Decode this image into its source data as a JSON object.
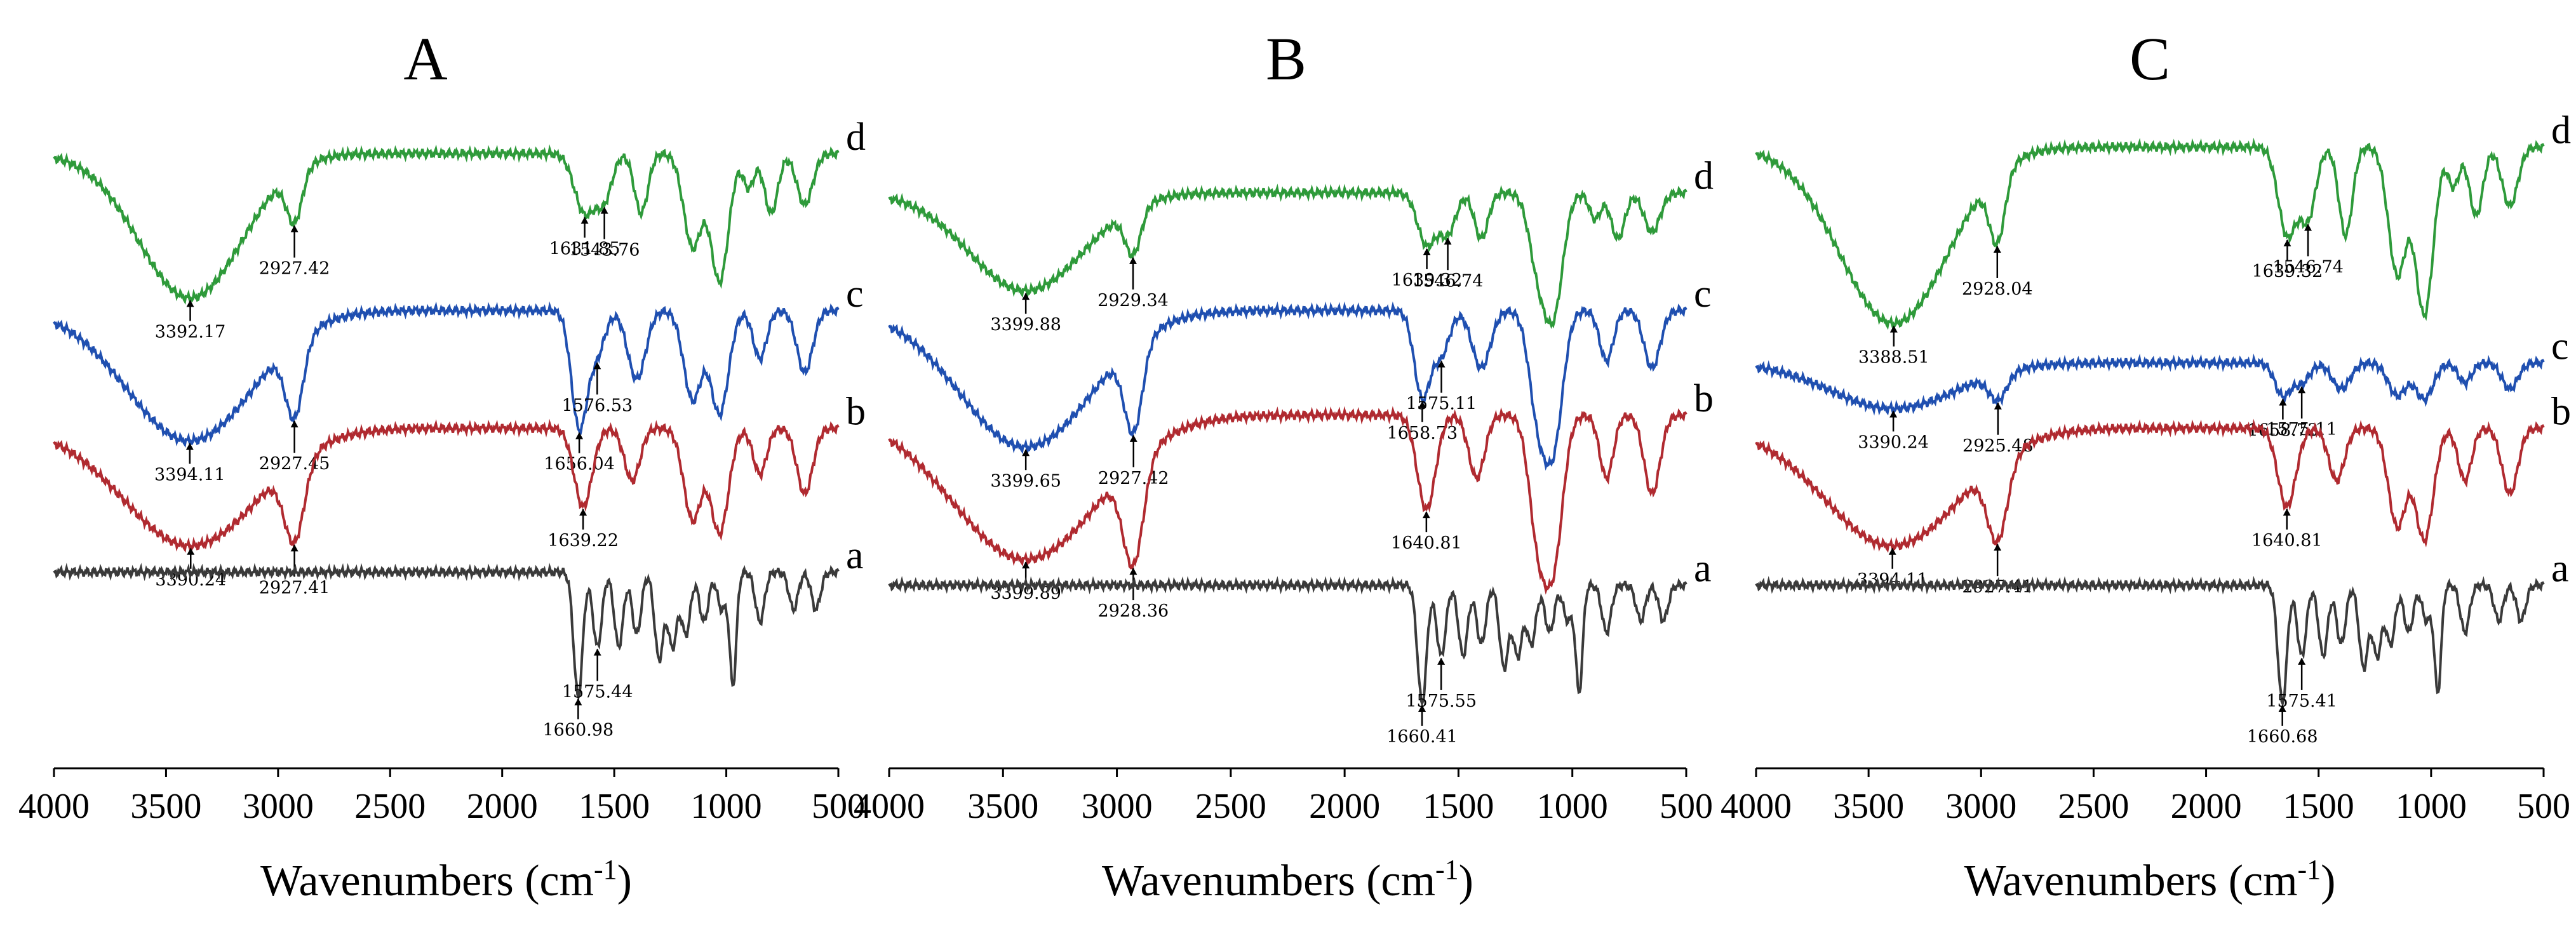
{
  "chart_data": [
    {
      "type": "line",
      "title": "A",
      "xlabel": "Wavenumbers (cm-1)",
      "xlabel_main": "Wavenumbers (cm",
      "xlabel_sup": "-1",
      "xlabel_close": ")",
      "xlim": [
        4000,
        500
      ],
      "ylabel": "",
      "x_ticks": [
        4000,
        3500,
        3000,
        2500,
        2000,
        1500,
        1000,
        500
      ],
      "x_tick_labels": [
        "4000",
        "3500",
        "3000",
        "2500",
        "2000",
        "1500",
        "1000",
        "500"
      ],
      "series": [
        {
          "name": "d",
          "color": "#2e9a3a",
          "offset": 0.06,
          "amp": 0.26,
          "bands": [
            [
              3392,
              0.85,
              230
            ],
            [
              2927,
              0.3,
              35
            ],
            [
              1632,
              0.35,
              45
            ],
            [
              1544,
              0.25,
              35
            ],
            [
              1380,
              0.35,
              30
            ],
            [
              1150,
              0.55,
              40
            ],
            [
              1030,
              0.75,
              40
            ],
            [
              900,
              0.2,
              25
            ],
            [
              800,
              0.35,
              30
            ],
            [
              650,
              0.3,
              35
            ]
          ],
          "annotations": [
            {
              "label": "3392.17",
              "x": 3392
            },
            {
              "label": "2927.42",
              "x": 2927
            },
            {
              "label": "1631.85",
              "x": 1632
            },
            {
              "label": "1543.76",
              "x": 1544
            }
          ]
        },
        {
          "name": "c",
          "color": "#1f4fb0",
          "offset": 0.3,
          "amp": 0.21,
          "bands": [
            [
              3394,
              0.95,
              280
            ],
            [
              2927,
              0.55,
              40
            ],
            [
              1656,
              0.85,
              35
            ],
            [
              1576,
              0.3,
              35
            ],
            [
              1400,
              0.5,
              40
            ],
            [
              1150,
              0.65,
              40
            ],
            [
              1030,
              0.75,
              40
            ],
            [
              850,
              0.35,
              30
            ],
            [
              650,
              0.45,
              35
            ]
          ],
          "annotations": [
            {
              "label": "3394.11",
              "x": 3394
            },
            {
              "label": "2927.45",
              "x": 2927
            },
            {
              "label": "1656.04",
              "x": 1656
            },
            {
              "label": "1576.53",
              "x": 1576
            }
          ]
        },
        {
          "name": "b",
          "color": "#b02a30",
          "offset": 0.48,
          "amp": 0.2,
          "bands": [
            [
              3390,
              0.9,
              300
            ],
            [
              2927,
              0.6,
              45
            ],
            [
              1639,
              0.6,
              40
            ],
            [
              1420,
              0.4,
              35
            ],
            [
              1150,
              0.7,
              40
            ],
            [
              1030,
              0.8,
              40
            ],
            [
              850,
              0.35,
              30
            ],
            [
              650,
              0.5,
              35
            ]
          ],
          "annotations": [
            {
              "label": "3390.24",
              "x": 3390
            },
            {
              "label": "2927.41",
              "x": 2927
            },
            {
              "label": "1639.22",
              "x": 1639
            }
          ]
        },
        {
          "name": "a",
          "color": "#3a3a3a",
          "offset": 0.7,
          "amp": 0.19,
          "bands": [
            [
              1661,
              1.0,
              20
            ],
            [
              1575,
              0.6,
              20
            ],
            [
              1480,
              0.6,
              20
            ],
            [
              1400,
              0.5,
              20
            ],
            [
              1300,
              0.7,
              20
            ],
            [
              1240,
              0.6,
              20
            ],
            [
              1180,
              0.5,
              20
            ],
            [
              1100,
              0.4,
              20
            ],
            [
              1020,
              0.3,
              20
            ],
            [
              970,
              0.9,
              15
            ],
            [
              850,
              0.4,
              20
            ],
            [
              700,
              0.3,
              20
            ],
            [
              600,
              0.3,
              20
            ]
          ],
          "annotations": [
            {
              "label": "1660.98",
              "x": 1661
            },
            {
              "label": "1575.44",
              "x": 1575
            }
          ]
        }
      ]
    },
    {
      "type": "line",
      "title": "B",
      "xlabel": "Wavenumbers (cm-1)",
      "xlabel_main": "Wavenumbers (cm",
      "xlabel_sup": "-1",
      "xlabel_close": ")",
      "xlim": [
        4000,
        500
      ],
      "ylabel": "",
      "x_ticks": [
        4000,
        3500,
        3000,
        2500,
        2000,
        1500,
        1000,
        500
      ],
      "x_tick_labels": [
        "4000",
        "3500",
        "3000",
        "2500",
        "2000",
        "1500",
        "1000",
        "500"
      ],
      "series": [
        {
          "name": "d",
          "color": "#2e9a3a",
          "offset": 0.12,
          "amp": 0.2,
          "bands": [
            [
              3400,
              0.75,
              250
            ],
            [
              2929,
              0.35,
              35
            ],
            [
              1639,
              0.4,
              40
            ],
            [
              1547,
              0.3,
              35
            ],
            [
              1400,
              0.35,
              30
            ],
            [
              1150,
              0.55,
              40
            ],
            [
              1080,
              0.85,
              40
            ],
            [
              900,
              0.2,
              25
            ],
            [
              800,
              0.35,
              30
            ],
            [
              650,
              0.3,
              35
            ]
          ],
          "annotations": [
            {
              "label": "3399.88",
              "x": 3400
            },
            {
              "label": "2929.34",
              "x": 2929
            },
            {
              "label": "1639.32",
              "x": 1639
            },
            {
              "label": "1546.74",
              "x": 1547
            }
          ]
        },
        {
          "name": "c",
          "color": "#1f4fb0",
          "offset": 0.3,
          "amp": 0.22,
          "bands": [
            [
              3400,
              0.95,
              290
            ],
            [
              2927,
              0.6,
              40
            ],
            [
              1659,
              0.6,
              35
            ],
            [
              1575,
              0.3,
              35
            ],
            [
              1400,
              0.4,
              40
            ],
            [
              1150,
              0.7,
              40
            ],
            [
              1080,
              0.85,
              40
            ],
            [
              850,
              0.35,
              30
            ],
            [
              650,
              0.4,
              35
            ]
          ],
          "annotations": [
            {
              "label": "3399.65",
              "x": 3400
            },
            {
              "label": "2927.42",
              "x": 2927
            },
            {
              "label": "1658.73",
              "x": 1659
            },
            {
              "label": "1575.11",
              "x": 1575
            }
          ]
        },
        {
          "name": "b",
          "color": "#b02a30",
          "offset": 0.46,
          "amp": 0.24,
          "bands": [
            [
              3400,
              0.92,
              320
            ],
            [
              2928,
              0.65,
              45
            ],
            [
              1641,
              0.6,
              40
            ],
            [
              1420,
              0.4,
              35
            ],
            [
              1150,
              0.75,
              40
            ],
            [
              1080,
              0.85,
              40
            ],
            [
              850,
              0.4,
              30
            ],
            [
              650,
              0.5,
              35
            ]
          ],
          "annotations": [
            {
              "label": "3399.89",
              "x": 3400
            },
            {
              "label": "2928.36",
              "x": 2928
            },
            {
              "label": "1640.81",
              "x": 1641
            }
          ]
        },
        {
          "name": "a",
          "color": "#3a3a3a",
          "offset": 0.72,
          "amp": 0.18,
          "bands": [
            [
              1660,
              1.0,
              20
            ],
            [
              1576,
              0.6,
              20
            ],
            [
              1480,
              0.6,
              20
            ],
            [
              1400,
              0.5,
              20
            ],
            [
              1300,
              0.7,
              20
            ],
            [
              1240,
              0.6,
              20
            ],
            [
              1180,
              0.5,
              20
            ],
            [
              1100,
              0.4,
              20
            ],
            [
              1020,
              0.3,
              20
            ],
            [
              970,
              0.9,
              15
            ],
            [
              850,
              0.4,
              20
            ],
            [
              700,
              0.3,
              20
            ],
            [
              600,
              0.3,
              20
            ]
          ],
          "annotations": [
            {
              "label": "1660.41",
              "x": 1660
            },
            {
              "label": "1575.55",
              "x": 1576
            }
          ]
        }
      ]
    },
    {
      "type": "line",
      "title": "C",
      "xlabel": "Wavenumbers (cm-1)",
      "xlabel_main": "Wavenumbers (cm",
      "xlabel_sup": "-1",
      "xlabel_close": ")",
      "xlim": [
        4000,
        500
      ],
      "ylabel": "",
      "x_ticks": [
        4000,
        3500,
        3000,
        2500,
        2000,
        1500,
        1000,
        500
      ],
      "x_tick_labels": [
        "4000",
        "3500",
        "3000",
        "2500",
        "2000",
        "1500",
        "1000",
        "500"
      ],
      "series": [
        {
          "name": "d",
          "color": "#2e9a3a",
          "offset": 0.05,
          "amp": 0.3,
          "bands": [
            [
              3388,
              0.9,
              240
            ],
            [
              2928,
              0.35,
              35
            ],
            [
              1639,
              0.45,
              40
            ],
            [
              1547,
              0.35,
              35
            ],
            [
              1380,
              0.45,
              30
            ],
            [
              1150,
              0.65,
              40
            ],
            [
              1030,
              0.85,
              40
            ],
            [
              900,
              0.2,
              25
            ],
            [
              800,
              0.35,
              30
            ],
            [
              650,
              0.3,
              35
            ]
          ],
          "annotations": [
            {
              "label": "3388.51",
              "x": 3388
            },
            {
              "label": "2928.04",
              "x": 2928
            },
            {
              "label": "1639.32",
              "x": 1639
            },
            {
              "label": "1546.74",
              "x": 1547
            }
          ]
        },
        {
          "name": "c",
          "color": "#1f4fb0",
          "offset": 0.38,
          "amp": 0.1,
          "bands": [
            [
              3390,
              0.7,
              280
            ],
            [
              2925,
              0.4,
              40
            ],
            [
              1659,
              0.5,
              35
            ],
            [
              1575,
              0.3,
              35
            ],
            [
              1400,
              0.4,
              40
            ],
            [
              1150,
              0.5,
              40
            ],
            [
              1030,
              0.55,
              40
            ],
            [
              850,
              0.3,
              30
            ],
            [
              650,
              0.4,
              35
            ]
          ],
          "annotations": [
            {
              "label": "3390.24",
              "x": 3390
            },
            {
              "label": "2925.48",
              "x": 2925
            },
            {
              "label": "1658.73",
              "x": 1659
            },
            {
              "label": "1575.11",
              "x": 1575
            }
          ]
        },
        {
          "name": "b",
          "color": "#b02a30",
          "offset": 0.48,
          "amp": 0.2,
          "bands": [
            [
              3394,
              0.9,
              300
            ],
            [
              2927,
              0.6,
              45
            ],
            [
              1641,
              0.6,
              40
            ],
            [
              1420,
              0.4,
              35
            ],
            [
              1150,
              0.75,
              40
            ],
            [
              1030,
              0.85,
              40
            ],
            [
              850,
              0.4,
              30
            ],
            [
              650,
              0.5,
              35
            ]
          ],
          "annotations": [
            {
              "label": "3394.11",
              "x": 3394
            },
            {
              "label": "2927.41",
              "x": 2927
            },
            {
              "label": "1640.81",
              "x": 1641
            }
          ]
        },
        {
          "name": "a",
          "color": "#3a3a3a",
          "offset": 0.72,
          "amp": 0.18,
          "bands": [
            [
              1661,
              1.0,
              20
            ],
            [
              1575,
              0.6,
              20
            ],
            [
              1480,
              0.6,
              20
            ],
            [
              1400,
              0.5,
              20
            ],
            [
              1300,
              0.7,
              20
            ],
            [
              1240,
              0.6,
              20
            ],
            [
              1180,
              0.5,
              20
            ],
            [
              1100,
              0.4,
              20
            ],
            [
              1020,
              0.3,
              20
            ],
            [
              970,
              0.9,
              15
            ],
            [
              850,
              0.4,
              20
            ],
            [
              700,
              0.3,
              20
            ],
            [
              600,
              0.3,
              20
            ]
          ],
          "annotations": [
            {
              "label": "1660.68",
              "x": 1661
            },
            {
              "label": "1575.41",
              "x": 1575
            }
          ]
        }
      ]
    }
  ]
}
